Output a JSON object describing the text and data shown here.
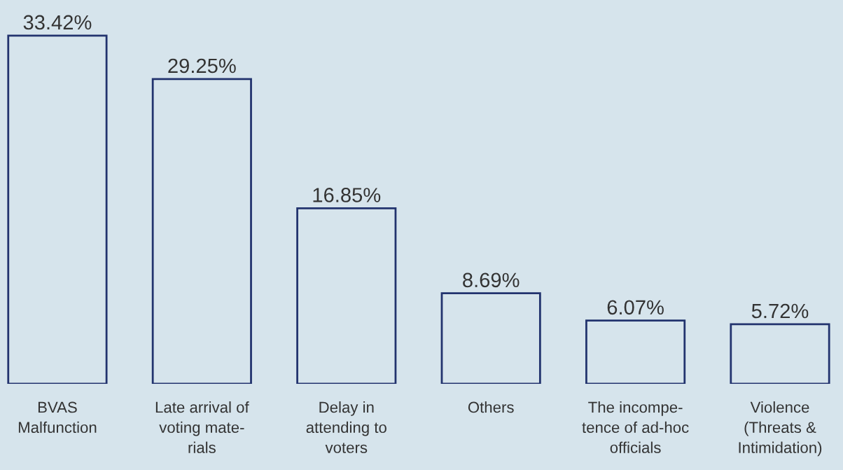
{
  "chart_data": {
    "type": "bar",
    "categories": [
      "BVAS\nMalfunction",
      "Late arrival of\nvoting mate-\nrials",
      "Delay in\nattending to\nvoters",
      "Others",
      "The incompe-\ntence of ad-hoc\nofficials",
      "Violence\n(Threats &\nIntimidation)"
    ],
    "values": [
      33.42,
      29.25,
      16.85,
      8.69,
      6.07,
      5.72
    ],
    "value_labels": [
      "33.42%",
      "29.25%",
      "16.85%",
      "8.69%",
      "6.07%",
      "5.72%"
    ],
    "color": "#22336e",
    "grid": false,
    "legend": false
  }
}
